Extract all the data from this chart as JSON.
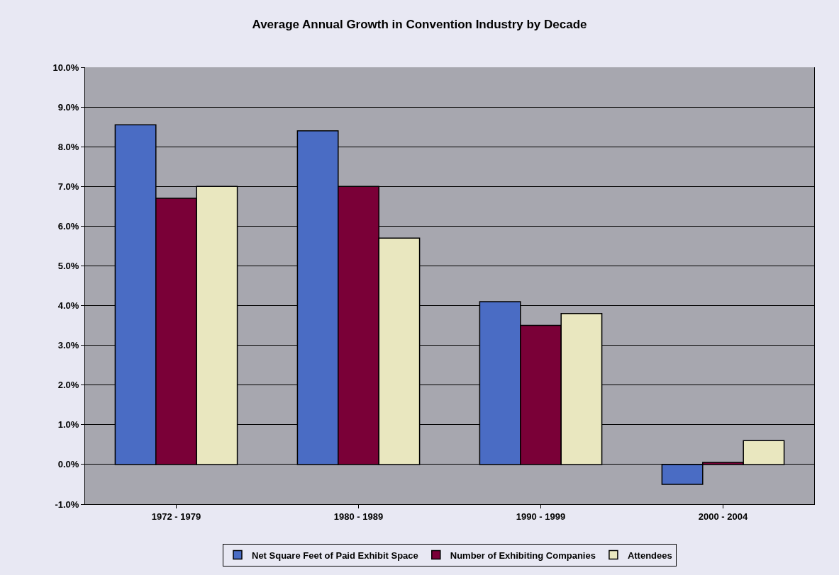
{
  "chart_data": {
    "type": "bar",
    "title": "Average Annual Growth in Convention Industry by Decade",
    "categories": [
      "1972 - 1979",
      "1980 - 1989",
      "1990 - 1999",
      "2000 - 2004"
    ],
    "series": [
      {
        "name": "Net Square Feet of Paid Exhibit Space",
        "color": "#4a6cc4",
        "values": [
          8.55,
          8.4,
          4.1,
          -0.5
        ]
      },
      {
        "name": "Number of Exhibiting Companies",
        "color": "#7a0037",
        "values": [
          6.7,
          7.0,
          3.5,
          0.05
        ]
      },
      {
        "name": "Attendees",
        "color": "#e9e7bf",
        "values": [
          7.0,
          5.7,
          3.8,
          0.6
        ]
      }
    ],
    "ylim": [
      -1,
      10
    ],
    "yticks": [
      {
        "value": -1,
        "label": "-1.0%"
      },
      {
        "value": 0,
        "label": "0.0%"
      },
      {
        "value": 1,
        "label": "1.0%"
      },
      {
        "value": 2,
        "label": "2.0%"
      },
      {
        "value": 3,
        "label": "3.0%"
      },
      {
        "value": 4,
        "label": "4.0%"
      },
      {
        "value": 5,
        "label": "5.0%"
      },
      {
        "value": 6,
        "label": "6.0%"
      },
      {
        "value": 7,
        "label": "7.0%"
      },
      {
        "value": 8,
        "label": "8.0%"
      },
      {
        "value": 9,
        "label": "9.0%"
      },
      {
        "value": 10,
        "label": "10.0%"
      }
    ],
    "grid": "y",
    "legend": "bottom"
  }
}
